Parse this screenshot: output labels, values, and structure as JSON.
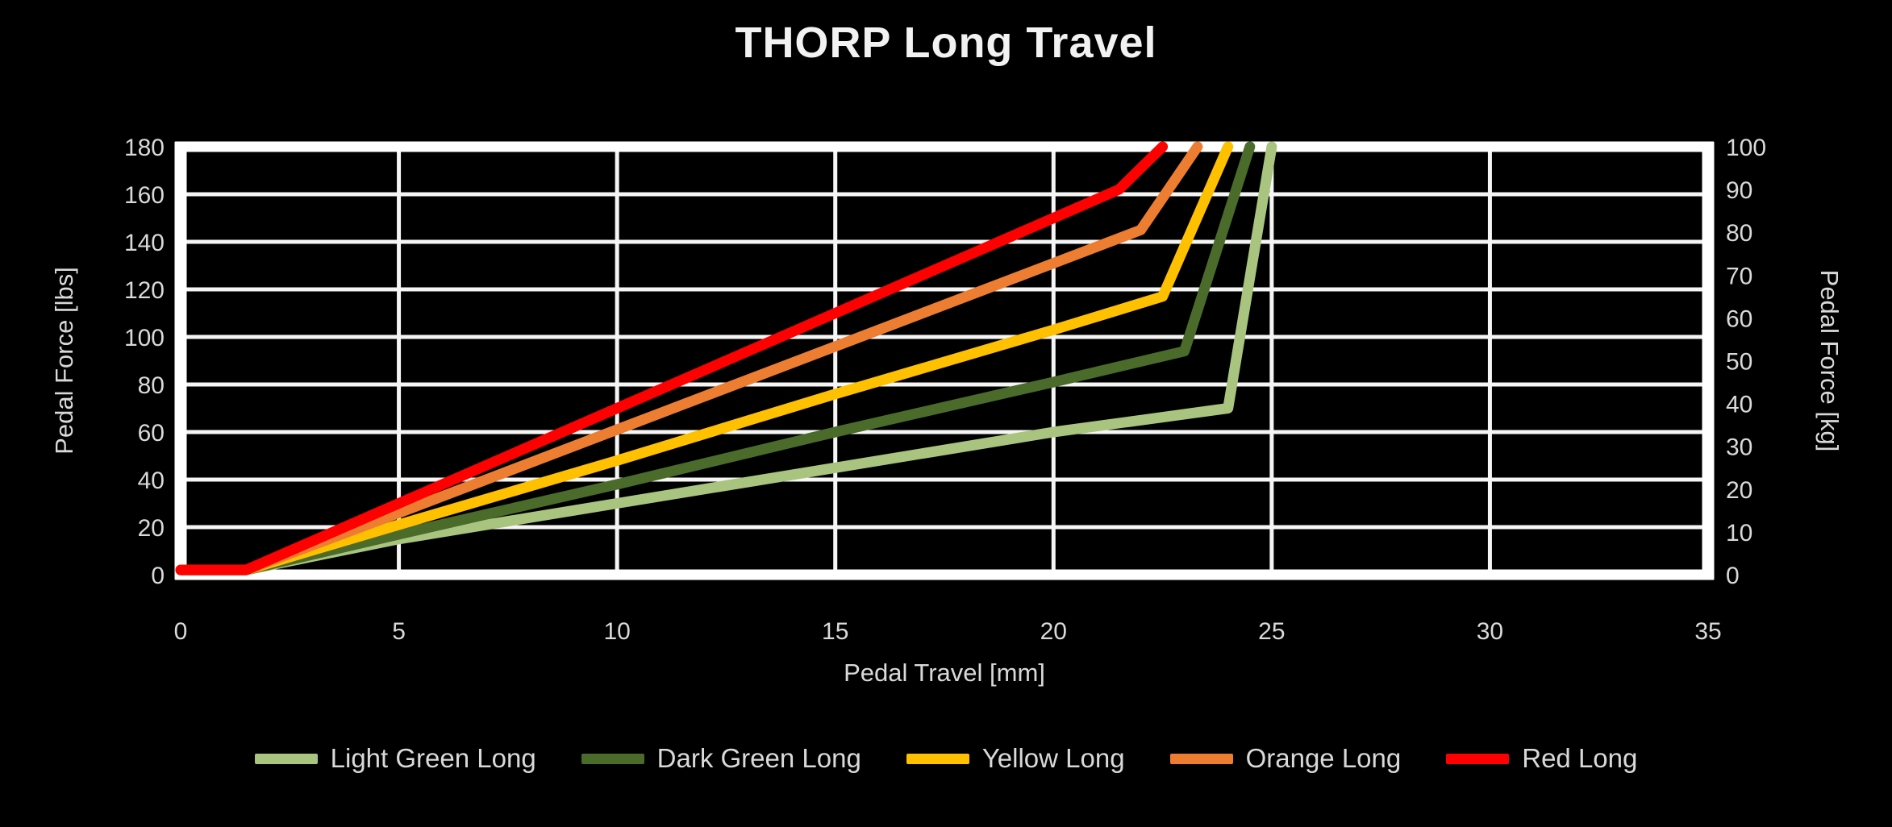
{
  "title": "THORP Long Travel",
  "chart_data": {
    "type": "line",
    "title": "THORP Long Travel",
    "xlabel": "Pedal Travel [mm]",
    "ylabel_left": "Pedal Force [lbs]",
    "ylabel_right": "Pedal Force [kg]",
    "xlim": [
      0,
      35
    ],
    "x_ticks": [
      0,
      5,
      10,
      15,
      20,
      25,
      30,
      35
    ],
    "ylim_left": [
      0,
      180
    ],
    "y_ticks_left": [
      0,
      20,
      40,
      60,
      80,
      100,
      120,
      140,
      160,
      180
    ],
    "ylim_right": [
      0,
      100
    ],
    "y_ticks_right": [
      0,
      10,
      20,
      30,
      40,
      50,
      60,
      70,
      80,
      90,
      100
    ],
    "grid": true,
    "legend_position": "bottom",
    "background_color": "#000000",
    "grid_color": "#f5f5f5",
    "label_color": "#d9d9d9",
    "series": [
      {
        "name": "Light Green Long",
        "color": "#a9c47f",
        "points": [
          [
            0,
            2
          ],
          [
            1.5,
            2
          ],
          [
            5,
            15
          ],
          [
            10,
            30
          ],
          [
            15,
            45
          ],
          [
            20,
            60
          ],
          [
            24,
            70
          ],
          [
            25,
            180
          ]
        ]
      },
      {
        "name": "Dark Green Long",
        "color": "#4a6b2a",
        "points": [
          [
            0,
            2
          ],
          [
            1.5,
            2
          ],
          [
            5,
            17
          ],
          [
            10,
            38
          ],
          [
            15,
            60
          ],
          [
            20,
            81
          ],
          [
            23,
            94
          ],
          [
            24.5,
            180
          ]
        ]
      },
      {
        "name": "Yellow Long",
        "color": "#ffc000",
        "points": [
          [
            0,
            2
          ],
          [
            1.5,
            2
          ],
          [
            5,
            21
          ],
          [
            10,
            48
          ],
          [
            15,
            76
          ],
          [
            20,
            103
          ],
          [
            22.5,
            117
          ],
          [
            24,
            180
          ]
        ]
      },
      {
        "name": "Orange Long",
        "color": "#ed7d31",
        "points": [
          [
            0,
            2
          ],
          [
            1.5,
            2
          ],
          [
            5,
            26
          ],
          [
            10,
            61
          ],
          [
            15,
            96
          ],
          [
            20,
            131
          ],
          [
            22,
            145
          ],
          [
            23.3,
            180
          ]
        ]
      },
      {
        "name": "Red Long",
        "color": "#ff0000",
        "points": [
          [
            0,
            2
          ],
          [
            1.5,
            2
          ],
          [
            5,
            30
          ],
          [
            10,
            70
          ],
          [
            15,
            110
          ],
          [
            20,
            150
          ],
          [
            21.5,
            162
          ],
          [
            22.5,
            180
          ]
        ]
      }
    ]
  }
}
